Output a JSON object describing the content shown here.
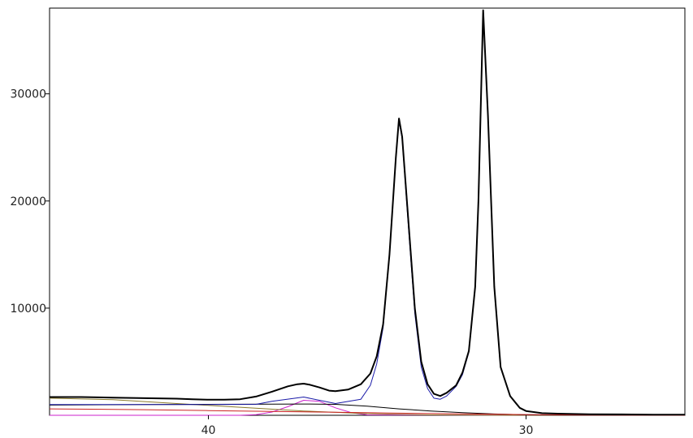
{
  "chart_data": {
    "type": "line",
    "title": "",
    "xlabel": "",
    "ylabel": "",
    "x_reversed": true,
    "xlim": [
      45,
      25
    ],
    "ylim": [
      0,
      38000
    ],
    "grid": false,
    "legend": "none",
    "x_ticks": [
      40,
      30
    ],
    "x_tick_labels": [
      "40",
      "30"
    ],
    "y_ticks": [
      10000,
      20000,
      30000
    ],
    "y_tick_labels": [
      "10000",
      "20000",
      "30000"
    ],
    "series": [
      {
        "role": "observed",
        "color": "#000000",
        "x": [
          45,
          44,
          43,
          42,
          41,
          40.5,
          40,
          39.5,
          39,
          38.5,
          38,
          37.5,
          37.2,
          37,
          36.8,
          36.5,
          36.2,
          36,
          35.6,
          35.2,
          34.9,
          34.7,
          34.5,
          34.3,
          34.1,
          34.0,
          33.9,
          33.7,
          33.5,
          33.3,
          33.1,
          32.9,
          32.7,
          32.5,
          32.2,
          32.0,
          31.8,
          31.6,
          31.5,
          31.4,
          31.35,
          31.2,
          31.0,
          30.8,
          30.5,
          30.2,
          30,
          29.5,
          29,
          28,
          27,
          26,
          25
        ],
        "y": [
          1700,
          1700,
          1650,
          1600,
          1550,
          1500,
          1450,
          1450,
          1500,
          1750,
          2200,
          2700,
          2900,
          2950,
          2850,
          2600,
          2300,
          2250,
          2400,
          2900,
          3900,
          5500,
          8500,
          15000,
          24000,
          27700,
          26000,
          18000,
          10000,
          5000,
          2900,
          2000,
          1800,
          2100,
          2800,
          4000,
          6000,
          12000,
          20000,
          32000,
          37800,
          28000,
          12000,
          4500,
          1800,
          700,
          400,
          200,
          150,
          100,
          80,
          60,
          50
        ]
      },
      {
        "role": "total-fit",
        "color": "#1a1aa8",
        "x": [
          45,
          42,
          40,
          38.5,
          38,
          37,
          36,
          35.2,
          34.9,
          34.7,
          34.5,
          34.3,
          34.1,
          34.0,
          33.9,
          33.7,
          33.5,
          33.3,
          33.1,
          32.9,
          32.7,
          32.5,
          32.2,
          32.0,
          31.8,
          31.6,
          31.5,
          31.4,
          31.35,
          31.2,
          31.0,
          30.8,
          30.5,
          30.2,
          30,
          29.5,
          29,
          28,
          27,
          26,
          25
        ],
        "y": [
          1000,
          1000,
          1000,
          1020,
          1300,
          1700,
          1100,
          1500,
          2800,
          4800,
          8200,
          15000,
          24000,
          27500,
          25800,
          17500,
          9500,
          4500,
          2500,
          1600,
          1500,
          1800,
          2700,
          3800,
          5900,
          12000,
          20000,
          32000,
          37800,
          28000,
          12000,
          4500,
          1800,
          700,
          400,
          200,
          150,
          100,
          80,
          60,
          50
        ]
      },
      {
        "role": "component",
        "color": "#cc22cc",
        "x": [
          45,
          39,
          38.5,
          38,
          37.5,
          37,
          36.5,
          36,
          35.5,
          35,
          25
        ],
        "y": [
          0,
          0,
          50,
          300,
          800,
          1400,
          1300,
          700,
          250,
          40,
          0
        ]
      },
      {
        "role": "component",
        "color": "#8a7a2a",
        "x": [
          45,
          43,
          41,
          39,
          37,
          35,
          33,
          31,
          29,
          25
        ],
        "y": [
          1600,
          1450,
          1100,
          750,
          400,
          150,
          40,
          10,
          0,
          0
        ]
      },
      {
        "role": "component",
        "color": "#000000",
        "x": [
          45,
          42,
          40,
          38,
          37,
          36,
          35,
          34,
          33,
          32,
          31,
          30,
          29,
          27,
          25
        ],
        "y": [
          950,
          1000,
          1020,
          1040,
          1050,
          1020,
          850,
          600,
          400,
          250,
          120,
          40,
          10,
          0,
          0
        ]
      },
      {
        "role": "component",
        "color": "#cc2222",
        "x": [
          45,
          42,
          40,
          38,
          36,
          34,
          32,
          30,
          28,
          25
        ],
        "y": [
          600,
          520,
          440,
          360,
          280,
          200,
          130,
          70,
          20,
          0
        ]
      }
    ]
  }
}
